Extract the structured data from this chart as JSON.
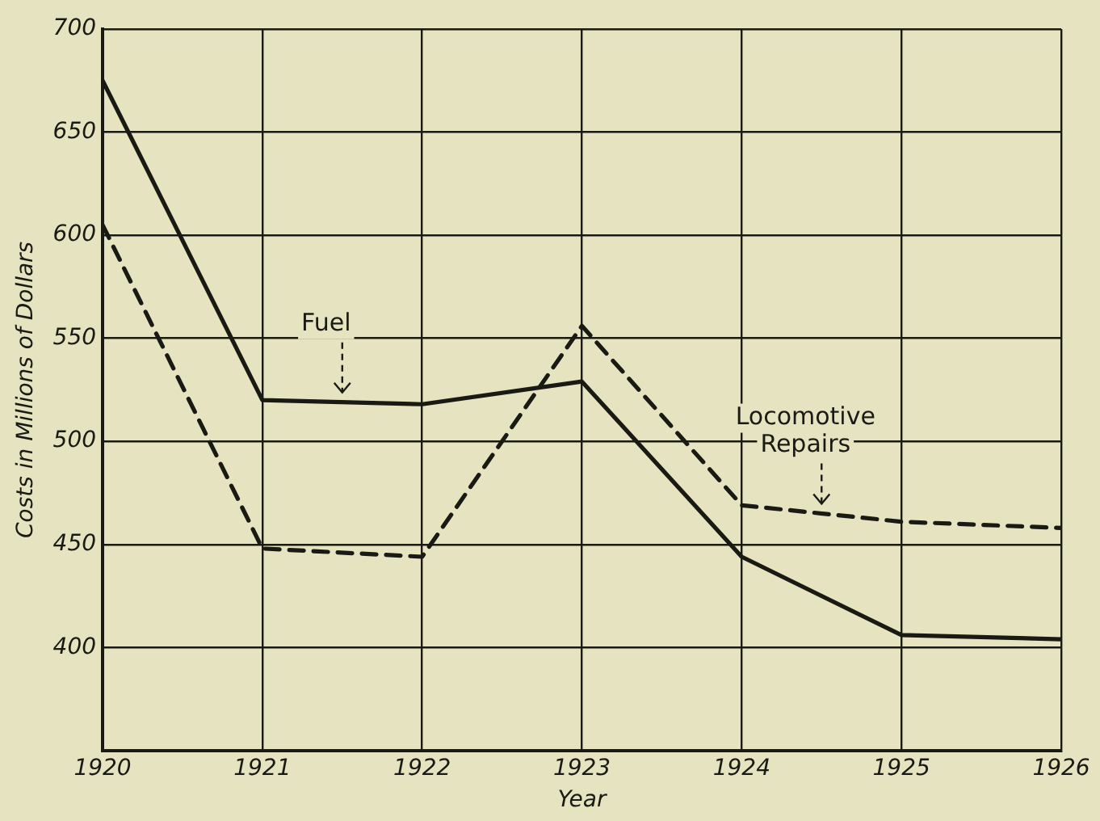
{
  "chart_data": {
    "type": "line",
    "xlabel": "Year",
    "ylabel": "Costs in Millions of Dollars",
    "x": [
      1920,
      1921,
      1922,
      1923,
      1924,
      1925,
      1926
    ],
    "series": [
      {
        "name": "Fuel",
        "color": "#1a1a14",
        "line_style": "solid",
        "values": [
          675,
          520,
          518,
          529,
          444,
          406,
          404
        ]
      },
      {
        "name": "Locomotive Repairs",
        "color": "#1a1a14",
        "line_style": "dashed",
        "values": [
          605,
          448,
          444,
          556,
          469,
          461,
          458
        ]
      }
    ],
    "xlim": [
      1920,
      1926
    ],
    "xticks": [
      1920,
      1921,
      1922,
      1923,
      1924,
      1925,
      1926
    ],
    "ylim": [
      350,
      700
    ],
    "yticks": [
      {
        "value": 350,
        "label": null
      },
      400,
      450,
      500,
      550,
      600,
      650,
      700
    ],
    "grid": true,
    "legend": false,
    "marker": "none"
  }
}
